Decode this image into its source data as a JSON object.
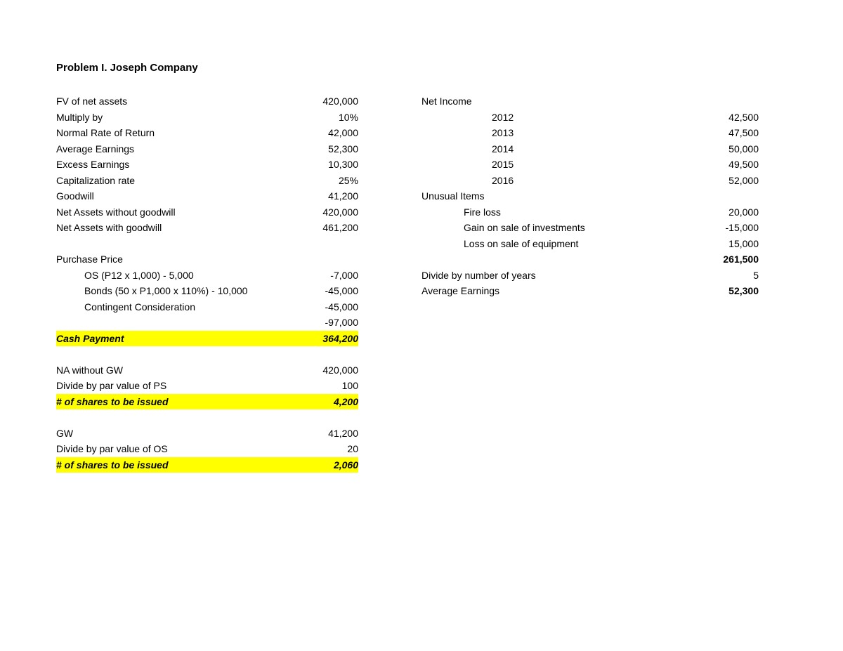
{
  "title": "Problem I. Joseph Company",
  "highlight_color": "#ffff00",
  "text_color": "#000000",
  "background_color": "#ffffff",
  "font_family": "Century Gothic",
  "font_size_pt": 11,
  "title_font_size_pt": 12,
  "left": {
    "fv_net_assets": {
      "label": "FV of net assets",
      "value": "420,000"
    },
    "multiply_by": {
      "label": "Multiply by",
      "value": "10%"
    },
    "normal_rate_return": {
      "label": "Normal Rate of Return",
      "value": "42,000"
    },
    "average_earnings": {
      "label": "Average Earnings",
      "value": "52,300"
    },
    "excess_earnings": {
      "label": "Excess Earnings",
      "value": "10,300"
    },
    "cap_rate": {
      "label": "Capitalization rate",
      "value": "25%"
    },
    "goodwill": {
      "label": "Goodwill",
      "value": "41,200"
    },
    "na_without_gw": {
      "label": "Net Assets without goodwill",
      "value": "420,000"
    },
    "na_with_gw": {
      "label": "Net Assets with goodwill",
      "value": "461,200"
    },
    "purchase_price_label": "Purchase Price",
    "pp_os": {
      "label": "OS (P12 x 1,000) - 5,000",
      "value": "-7,000"
    },
    "pp_bonds": {
      "label": "Bonds (50 x P1,000 x 110%) - 10,000",
      "value": "-45,000"
    },
    "pp_cc": {
      "label": "Contingent Consideration",
      "value": "-45,000"
    },
    "pp_total": {
      "value": "-97,000"
    },
    "cash_payment": {
      "label": "Cash Payment",
      "value": "364,200"
    },
    "na_wo_gw2": {
      "label": "NA without GW",
      "value": "420,000"
    },
    "div_par_ps": {
      "label": "Divide by par value of PS",
      "value": "100"
    },
    "shares_ps": {
      "label": "# of shares to be issued",
      "value": "4,200"
    },
    "gw2": {
      "label": "GW",
      "value": "41,200"
    },
    "div_par_os": {
      "label": "Divide by par value of OS",
      "value": "20"
    },
    "shares_os": {
      "label": "# of shares to be issued",
      "value": "2,060"
    }
  },
  "right": {
    "net_income_label": "Net Income",
    "ni_2012": {
      "label": "2012",
      "value": "42,500"
    },
    "ni_2013": {
      "label": "2013",
      "value": "47,500"
    },
    "ni_2014": {
      "label": "2014",
      "value": "50,000"
    },
    "ni_2015": {
      "label": "2015",
      "value": "49,500"
    },
    "ni_2016": {
      "label": "2016",
      "value": "52,000"
    },
    "unusual_label": "Unusual Items",
    "fire_loss": {
      "label": "Fire loss",
      "value": "20,000"
    },
    "gain_inv": {
      "label": "Gain on sale of investments",
      "value": "-15,000"
    },
    "loss_equip": {
      "label": "Loss on sale of equipment",
      "value": "15,000"
    },
    "subtotal": {
      "value": "261,500"
    },
    "divide_years": {
      "label": "Divide by number of years",
      "value": "5"
    },
    "avg_earn": {
      "label": "Average Earnings",
      "value": "52,300"
    }
  }
}
